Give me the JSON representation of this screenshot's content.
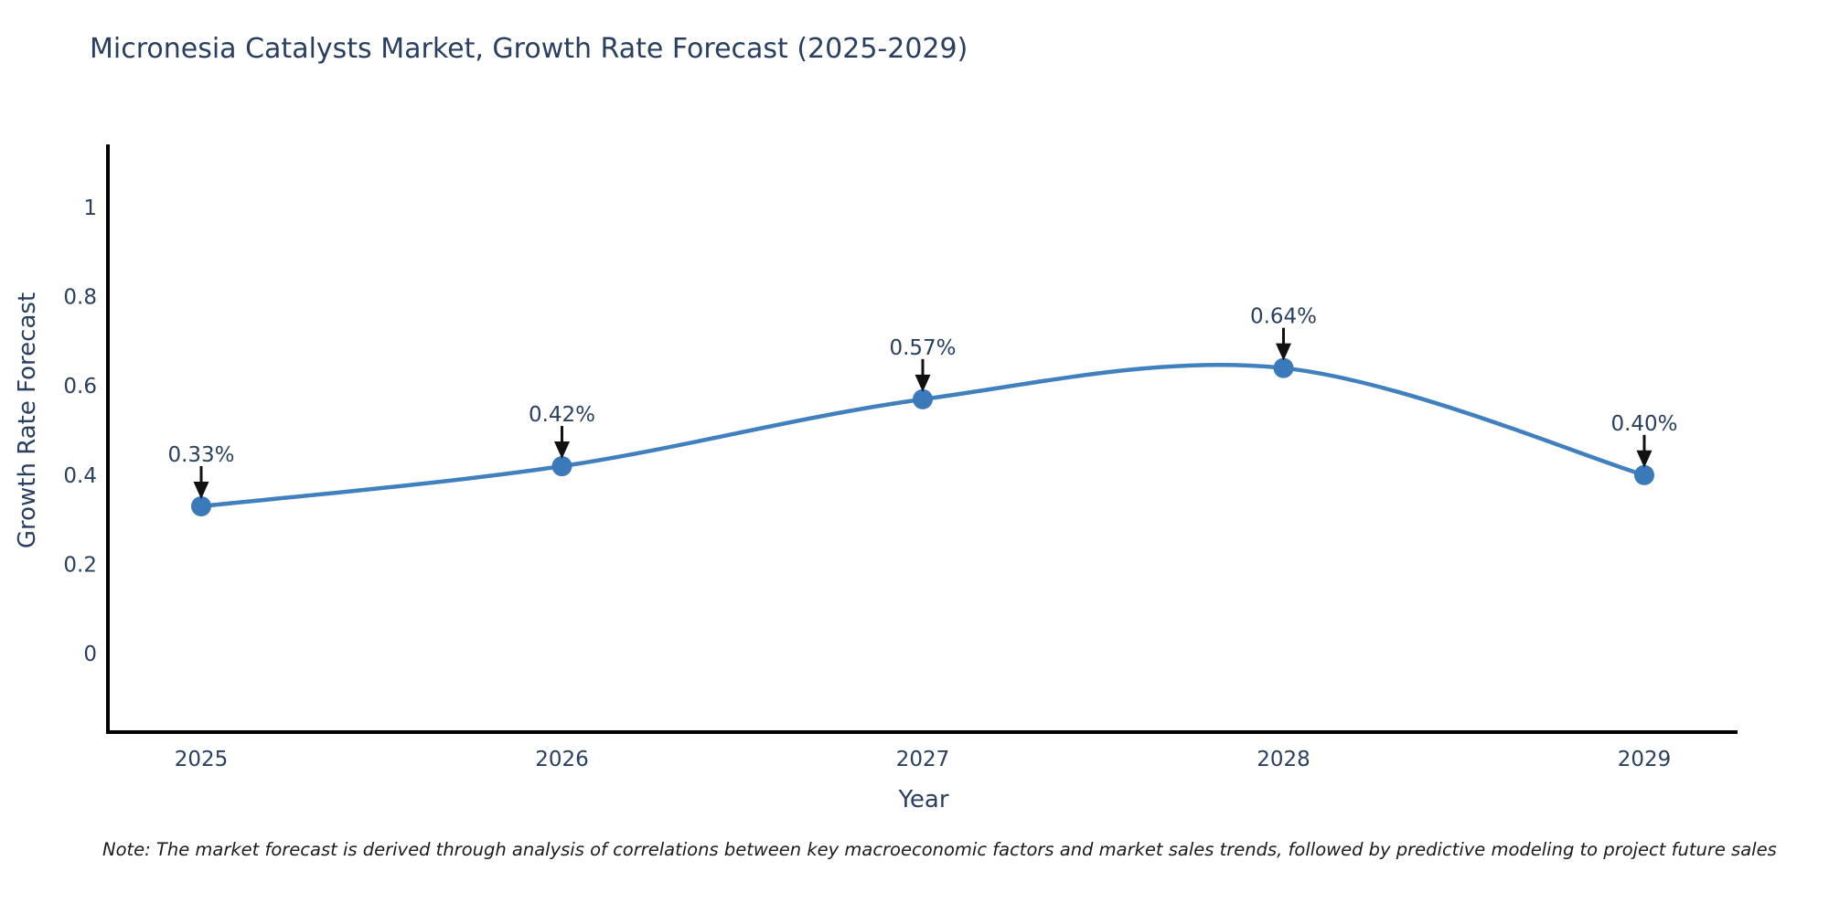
{
  "title": "Micronesia Catalysts Market, Growth Rate Forecast (2025-2029)",
  "note": "Note: The market forecast is derived through analysis of correlations between key macroeconomic factors and market sales trends, followed by predictive modeling to project future sales",
  "chart_data": {
    "type": "line",
    "line_shape": "spline",
    "title": "Micronesia Catalysts Market, Growth Rate Forecast (2025-2029)",
    "xlabel": "Year",
    "ylabel": "Growth Rate Forecast",
    "x": [
      2025,
      2026,
      2027,
      2028,
      2029
    ],
    "values": [
      0.33,
      0.42,
      0.57,
      0.64,
      0.4
    ],
    "point_labels": [
      "0.33%",
      "0.42%",
      "0.57%",
      "0.64%",
      "0.40%"
    ],
    "x_tick_labels": [
      "2025",
      "2026",
      "2027",
      "2028",
      "2029"
    ],
    "y_ticks": [
      0,
      0.2,
      0.4,
      0.6,
      0.8,
      1
    ],
    "y_tick_labels": [
      "0",
      "0.2",
      "0.4",
      "0.6",
      "0.8",
      "1"
    ],
    "ylim": [
      -0.18,
      1.14
    ],
    "grid": false,
    "legend": "none",
    "annotations": "down-arrows from labels to markers",
    "colors": {
      "line": "#4180bf",
      "marker": "#3a79ba",
      "axis": "#000000",
      "text": "#2a3f5f",
      "arrow": "#111111"
    }
  }
}
